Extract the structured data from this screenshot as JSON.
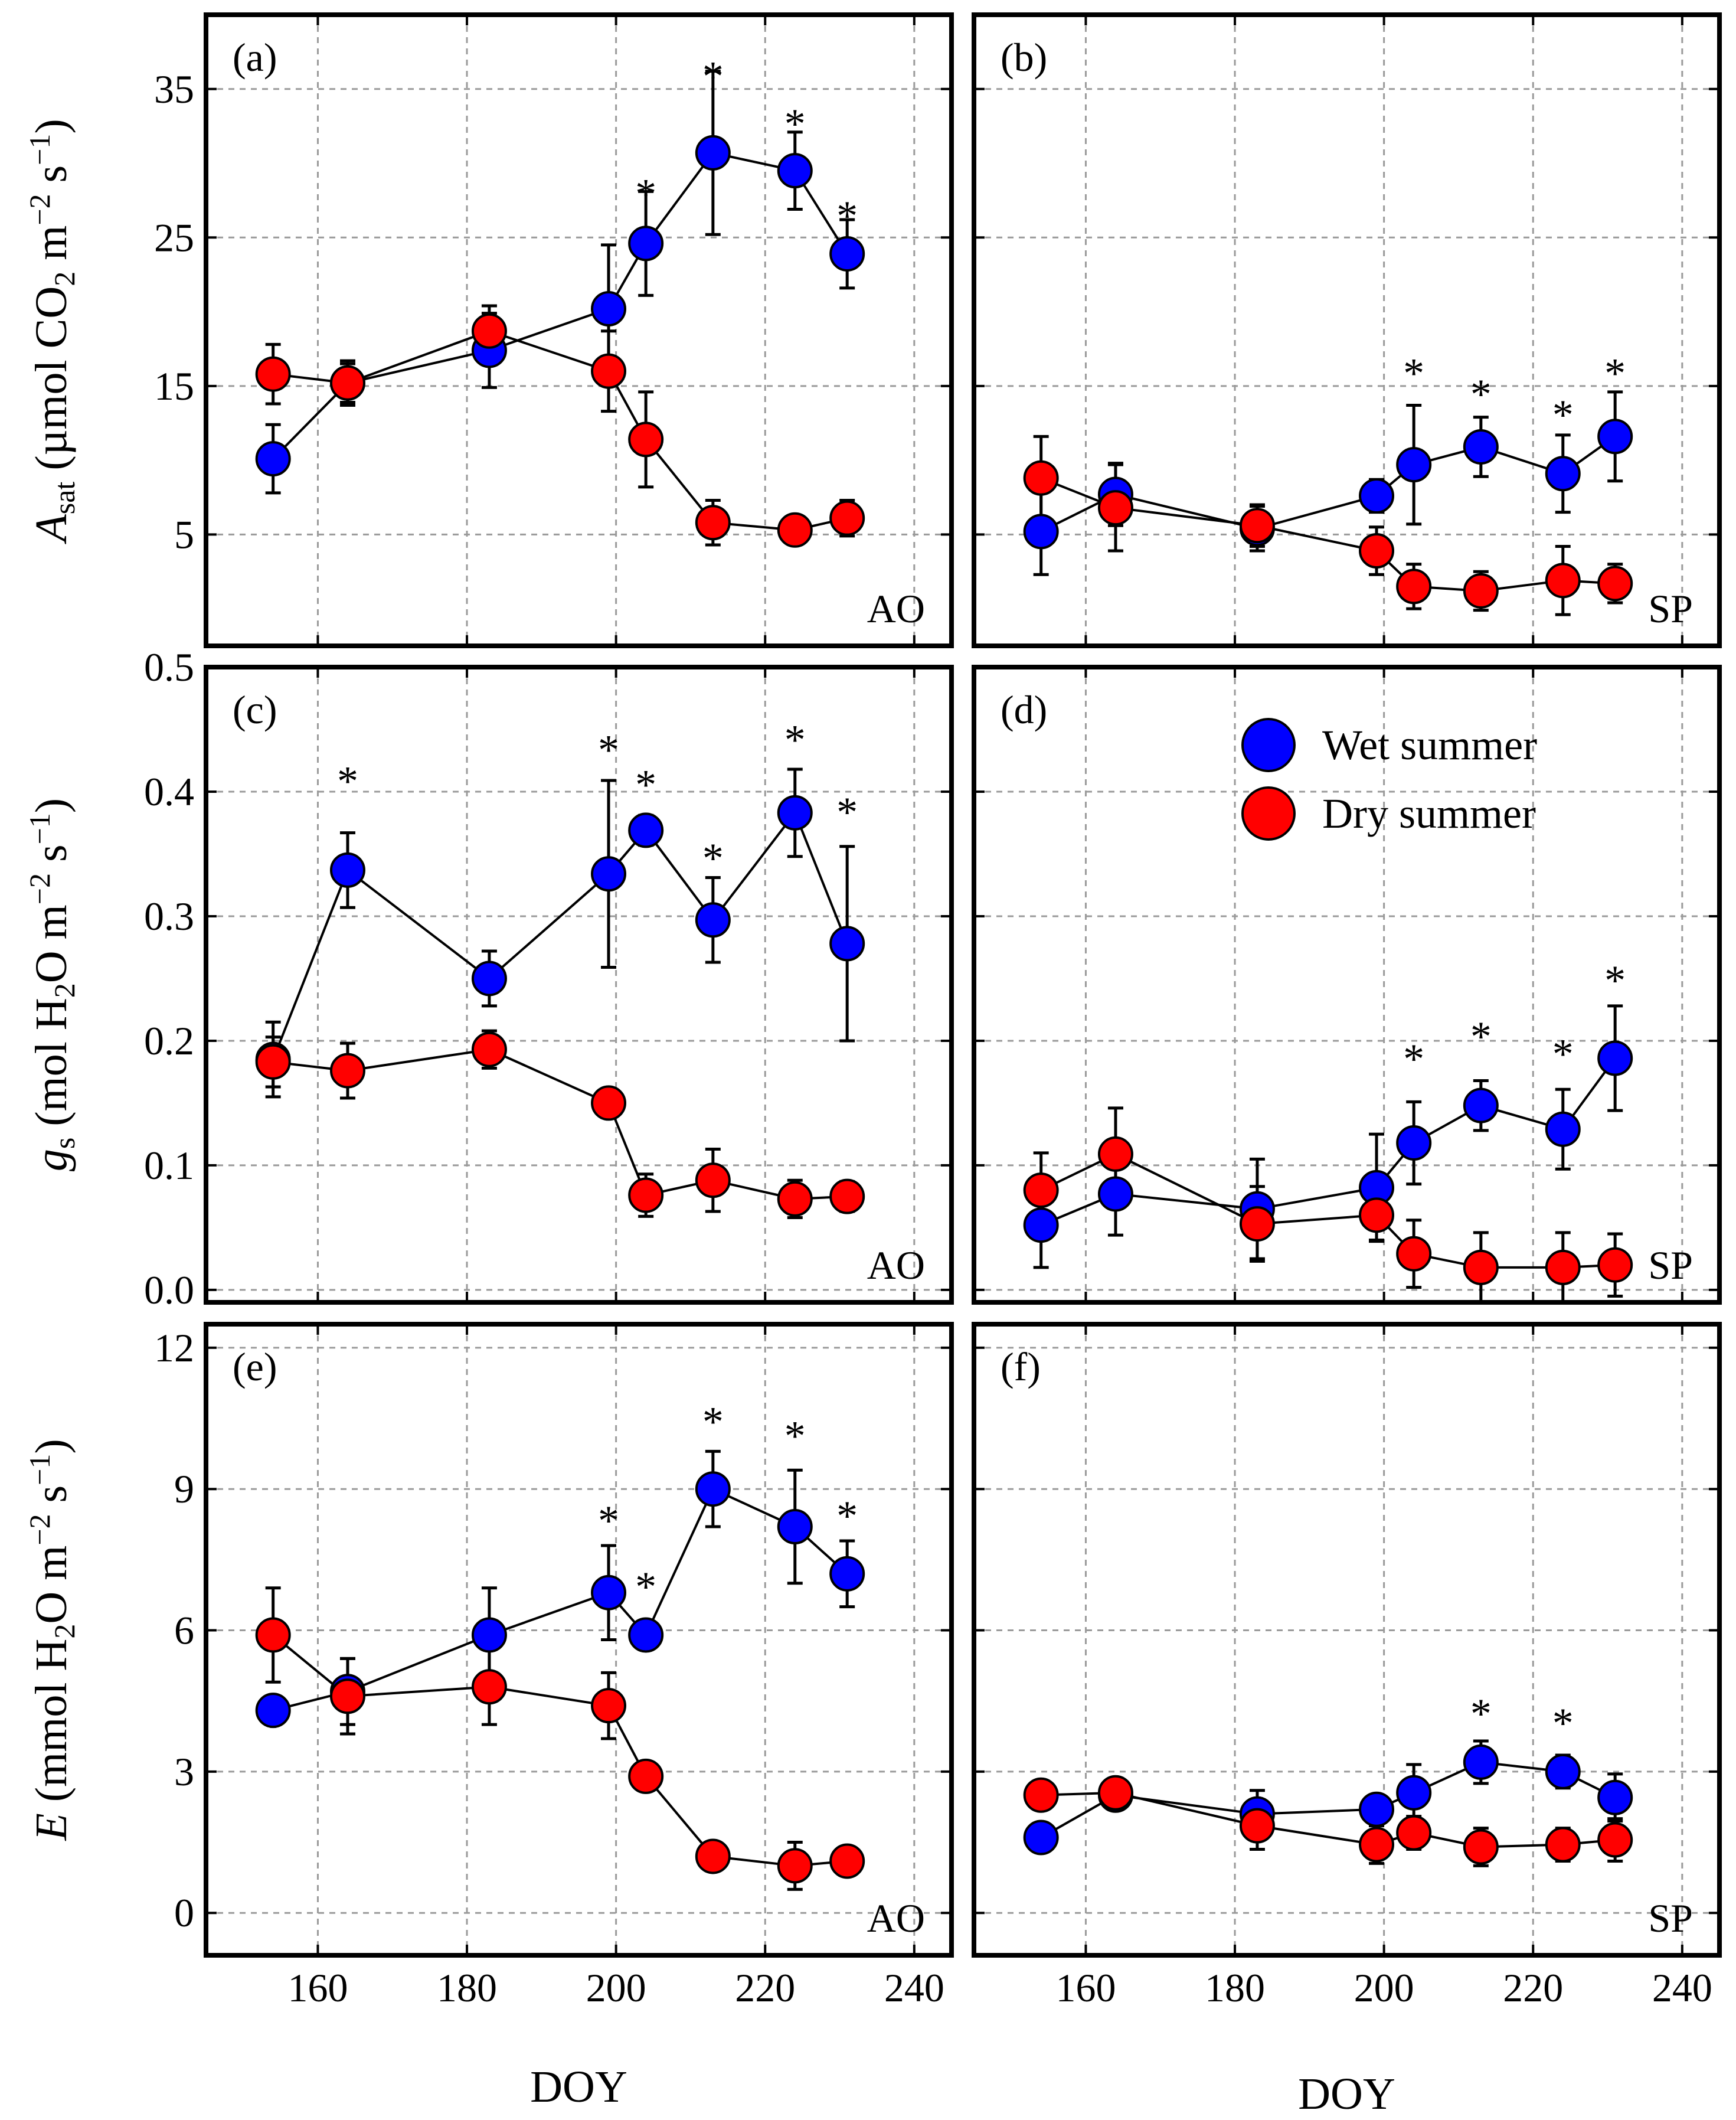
{
  "colors": {
    "wet": "#0000ff",
    "dry": "#ff0000",
    "grid": "#9a9a9a",
    "frame": "#000000"
  },
  "legend": {
    "wet": "Wet summer",
    "dry": "Dry summer"
  },
  "axes": {
    "xlabel": "DOY",
    "x_ticks": [
      "160",
      "180",
      "200",
      "220",
      "240"
    ],
    "x_range": [
      145,
      245
    ],
    "row_ylabels": [
      {
        "text": "A",
        "sub": "sat",
        "rest": " (µmol CO",
        "sub2": "2",
        "rest2": " m",
        "sup": "−2",
        "rest3": " s",
        "sup2": "−1",
        "rest4": ")"
      },
      {
        "text": "g",
        "sub": "s",
        "rest": " (mol H",
        "sub2": "2",
        "rest2": "O m",
        "sup": "−2",
        "rest3": " s",
        "sup2": "−1",
        "rest4": ")"
      },
      {
        "text": "E",
        "sub": "",
        "rest": " (mmol H",
        "sub2": "2",
        "rest2": "O m",
        "sup": "−2",
        "rest3": " s",
        "sup2": "−1",
        "rest4": ")"
      }
    ],
    "row_yticks": [
      [
        "5",
        "15",
        "25",
        "35"
      ],
      [
        "0.0",
        "0.1",
        "0.2",
        "0.3",
        "0.4",
        "0.5"
      ],
      [
        "0",
        "3",
        "6",
        "9",
        "12"
      ]
    ],
    "row_ytick_values": [
      [
        5,
        15,
        25,
        35
      ],
      [
        0,
        0.1,
        0.2,
        0.3,
        0.4,
        0.5
      ],
      [
        0,
        3,
        6,
        9,
        12
      ]
    ],
    "row_ylim": [
      [
        -2.5,
        40
      ],
      [
        -0.01,
        0.5
      ],
      [
        -0.9,
        12.5
      ]
    ]
  },
  "chart_data": [
    {
      "panel": "(a)",
      "site": "AO",
      "type": "scatter",
      "ylabel": "Asat (µmol CO2 m−2 s−1)",
      "xlabel": "DOY",
      "series": [
        {
          "name": "Wet summer",
          "x": [
            154,
            164,
            183,
            199,
            204,
            213,
            224,
            231
          ],
          "y": [
            10.1,
            15.2,
            17.4,
            20.2,
            24.6,
            30.7,
            29.5,
            23.9
          ],
          "err": [
            2.3,
            1.3,
            2.5,
            4.3,
            3.5,
            5.5,
            2.6,
            2.3
          ]
        },
        {
          "name": "Dry summer",
          "x": [
            154,
            164,
            183,
            199,
            204,
            213,
            224,
            231
          ],
          "y": [
            15.8,
            15.2,
            18.7,
            16.0,
            11.4,
            5.8,
            5.3,
            6.1
          ],
          "err": [
            2.0,
            1.5,
            1.7,
            2.7,
            3.2,
            1.5,
            0.9,
            1.2
          ]
        }
      ],
      "stars": [
        204,
        213,
        224,
        231
      ],
      "star_y": [
        28.5,
        36.4,
        33.2,
        27.0
      ]
    },
    {
      "panel": "(b)",
      "site": "SP",
      "type": "scatter",
      "ylabel": "",
      "xlabel": "",
      "series": [
        {
          "name": "Wet summer",
          "x": [
            154,
            164,
            183,
            199,
            204,
            213,
            224,
            231
          ],
          "y": [
            5.2,
            7.7,
            5.4,
            7.6,
            9.7,
            10.9,
            9.1,
            11.6
          ],
          "err": [
            2.9,
            2.1,
            1.5,
            1.1,
            4.0,
            2.0,
            2.6,
            3.0
          ]
        },
        {
          "name": "Dry summer",
          "x": [
            154,
            164,
            183,
            199,
            204,
            213,
            224,
            231
          ],
          "y": [
            8.8,
            6.8,
            5.6,
            3.9,
            1.5,
            1.2,
            1.9,
            1.7
          ],
          "err": [
            2.8,
            2.9,
            1.4,
            1.6,
            1.5,
            1.3,
            2.3,
            1.3
          ]
        }
      ],
      "stars": [
        204,
        213,
        224,
        231
      ],
      "star_y": [
        16.4,
        15.0,
        13.6,
        16.4
      ]
    },
    {
      "panel": "(c)",
      "site": "AO",
      "type": "scatter",
      "ylabel": "gs (mol H2O m−2 s−1)",
      "xlabel": "",
      "series": [
        {
          "name": "Wet summer",
          "x": [
            154,
            164,
            183,
            199,
            204,
            213,
            224,
            231
          ],
          "y": [
            0.185,
            0.337,
            0.25,
            0.334,
            0.369,
            0.297,
            0.383,
            0.278
          ],
          "err": [
            0.03,
            0.03,
            0.022,
            0.075,
            0.012,
            0.034,
            0.035,
            0.078
          ]
        },
        {
          "name": "Dry summer",
          "x": [
            154,
            164,
            183,
            199,
            204,
            213,
            224,
            231
          ],
          "y": [
            0.183,
            0.176,
            0.193,
            0.15,
            0.076,
            0.088,
            0.073,
            0.075
          ],
          "err": [
            0.02,
            0.022,
            0.015,
            0.01,
            0.017,
            0.025,
            0.015,
            0.012
          ]
        }
      ],
      "stars": [
        164,
        199,
        204,
        213,
        224,
        231
      ],
      "star_y": [
        0.415,
        0.44,
        0.412,
        0.353,
        0.448,
        0.39
      ]
    },
    {
      "panel": "(d)",
      "site": "SP",
      "type": "scatter",
      "ylabel": "",
      "xlabel": "",
      "series": [
        {
          "name": "Wet summer",
          "x": [
            154,
            164,
            183,
            199,
            204,
            213,
            224,
            231
          ],
          "y": [
            0.052,
            0.077,
            0.065,
            0.082,
            0.118,
            0.148,
            0.129,
            0.186
          ],
          "err": [
            0.034,
            0.033,
            0.04,
            0.043,
            0.033,
            0.02,
            0.032,
            0.042
          ]
        },
        {
          "name": "Dry summer",
          "x": [
            154,
            164,
            183,
            199,
            204,
            213,
            224,
            231
          ],
          "y": [
            0.08,
            0.109,
            0.053,
            0.06,
            0.029,
            0.018,
            0.018,
            0.02
          ],
          "err": [
            0.03,
            0.037,
            0.03,
            0.02,
            0.027,
            0.028,
            0.028,
            0.025
          ]
        }
      ],
      "stars": [
        204,
        213,
        224,
        231
      ],
      "star_y": [
        0.192,
        0.21,
        0.196,
        0.255
      ]
    },
    {
      "panel": "(e)",
      "site": "AO",
      "type": "scatter",
      "ylabel": "E (mmol H2O m−2 s−1)",
      "xlabel": "DOY",
      "series": [
        {
          "name": "Wet summer",
          "x": [
            154,
            164,
            183,
            199,
            204,
            213,
            224,
            231
          ],
          "y": [
            4.3,
            4.7,
            5.9,
            6.8,
            5.9,
            9.0,
            8.2,
            7.2
          ],
          "err": [
            0.3,
            0.7,
            1.0,
            1.0,
            0.3,
            0.8,
            1.2,
            0.7
          ]
        },
        {
          "name": "Dry summer",
          "x": [
            154,
            164,
            183,
            199,
            204,
            213,
            224,
            231
          ],
          "y": [
            5.9,
            4.6,
            4.8,
            4.4,
            2.9,
            1.2,
            1.0,
            1.1
          ],
          "err": [
            1.0,
            0.8,
            0.8,
            0.7,
            0.3,
            0.3,
            0.5,
            0.3
          ]
        }
      ],
      "stars": [
        199,
        204,
        213,
        224,
        231
      ],
      "star_y": [
        8.5,
        7.1,
        10.6,
        10.3,
        8.6
      ]
    },
    {
      "panel": "(f)",
      "site": "SP",
      "type": "scatter",
      "ylabel": "",
      "xlabel": "DOY",
      "series": [
        {
          "name": "Wet summer",
          "x": [
            154,
            164,
            183,
            199,
            204,
            213,
            224,
            231
          ],
          "y": [
            1.6,
            2.5,
            2.1,
            2.2,
            2.55,
            3.2,
            3.0,
            2.45
          ],
          "err": [
            0.3,
            0.3,
            0.5,
            0.3,
            0.6,
            0.45,
            0.35,
            0.5
          ]
        },
        {
          "name": "Dry summer",
          "x": [
            154,
            164,
            183,
            199,
            204,
            213,
            224,
            231
          ],
          "y": [
            2.5,
            2.55,
            1.85,
            1.45,
            1.7,
            1.4,
            1.45,
            1.55
          ],
          "err": [
            0.25,
            0.25,
            0.5,
            0.4,
            0.35,
            0.4,
            0.35,
            0.45
          ]
        }
      ],
      "stars": [
        213,
        224
      ],
      "star_y": [
        4.4,
        4.2
      ]
    }
  ]
}
